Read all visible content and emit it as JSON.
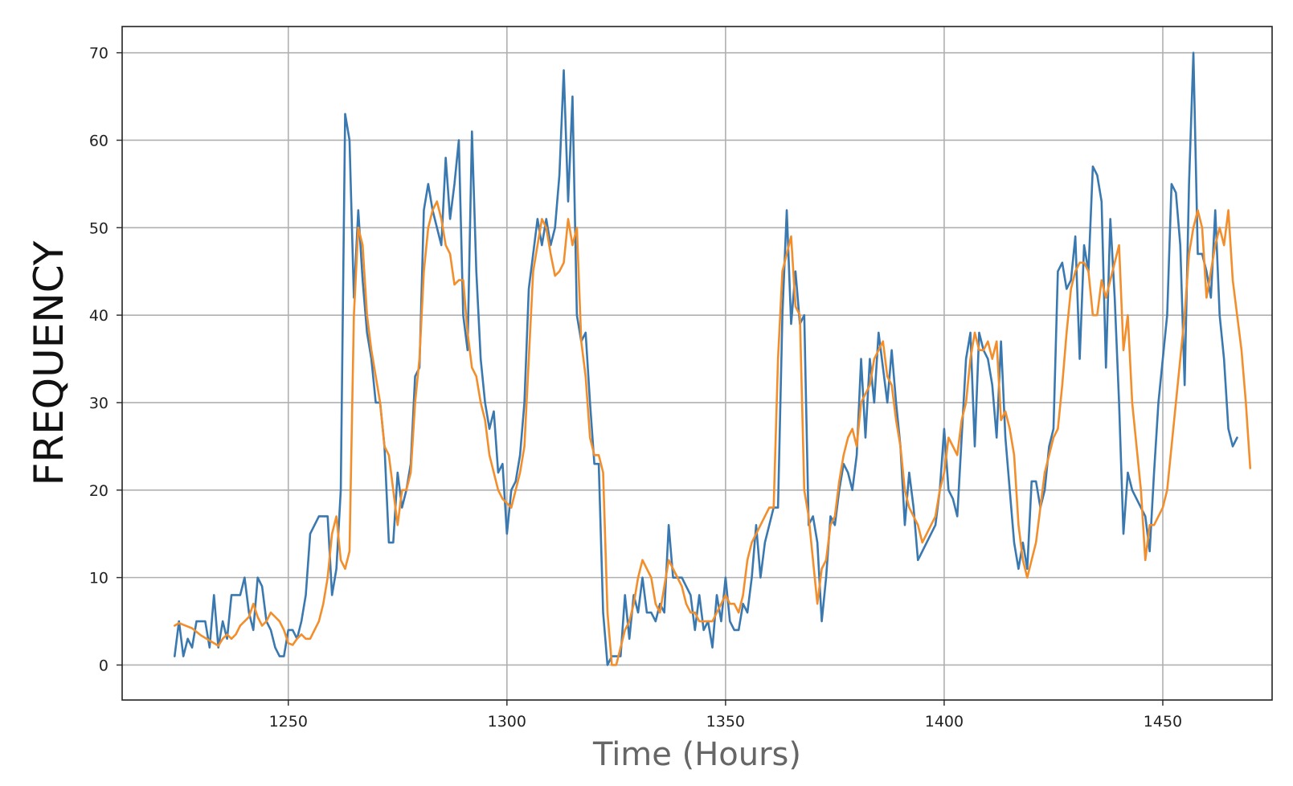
{
  "chart_data": {
    "type": "line",
    "title": "",
    "xlabel": "Time (Hours)",
    "ylabel": "FREQUENCY",
    "xlim": [
      1212,
      1475
    ],
    "ylim": [
      -4,
      73
    ],
    "x_ticks": [
      1250,
      1300,
      1350,
      1400,
      1450
    ],
    "y_ticks": [
      0,
      10,
      20,
      30,
      40,
      50,
      60,
      70
    ],
    "grid": true,
    "legend": "none",
    "series": [
      {
        "color": "#3a78b0",
        "x_start": 1224,
        "values": [
          1,
          5,
          1,
          3,
          2,
          5,
          5,
          5,
          2,
          8,
          2,
          5,
          3,
          8,
          8,
          8,
          10,
          6,
          4,
          10,
          9,
          5,
          4,
          2,
          1,
          1,
          4,
          4,
          3,
          5,
          8,
          15,
          16,
          17,
          17,
          17,
          8,
          11,
          20,
          63,
          60,
          42,
          52,
          44,
          38,
          35,
          30,
          30,
          25,
          14,
          14,
          22,
          18,
          20,
          23,
          33,
          34,
          52,
          55,
          52,
          50,
          48,
          58,
          51,
          55,
          60,
          40,
          36,
          61,
          45,
          35,
          30,
          27,
          29,
          22,
          23,
          15,
          20,
          21,
          24,
          30,
          43,
          47,
          51,
          48,
          51,
          48,
          50,
          56,
          68,
          53,
          65,
          40,
          37,
          38,
          30,
          23,
          23,
          6,
          0,
          1,
          1,
          1,
          8,
          3,
          8,
          6,
          10,
          6,
          6,
          5,
          7,
          6,
          16,
          10,
          10,
          10,
          9,
          8,
          4,
          8,
          4,
          5,
          2,
          8,
          5,
          10,
          5,
          4,
          4,
          7,
          6,
          10,
          16,
          10,
          14,
          16,
          18,
          18,
          40,
          52,
          39,
          45,
          39,
          40,
          16,
          17,
          14,
          5,
          10,
          17,
          16,
          20,
          23,
          22,
          20,
          24,
          35,
          26,
          35,
          30,
          38,
          34,
          30,
          36,
          30,
          25,
          16,
          22,
          18,
          12,
          13,
          14,
          15,
          16,
          20,
          27,
          20,
          19,
          17,
          26,
          35,
          38,
          25,
          38,
          36,
          35,
          32,
          26,
          37,
          26,
          20,
          14,
          11,
          14,
          11,
          21,
          21,
          18,
          20,
          25,
          27,
          45,
          46,
          43,
          44,
          49,
          35,
          48,
          45,
          57,
          56,
          53,
          34,
          51,
          42,
          30,
          15,
          22,
          20,
          19,
          18,
          17,
          13,
          22,
          30,
          35,
          40,
          55,
          54,
          48,
          32,
          55,
          70,
          47,
          47,
          45,
          42,
          52,
          40,
          35,
          27,
          25,
          26
        ],
        "values_note": ""
      },
      {
        "color": "#f28e2b",
        "x_start": 1224,
        "values": [
          4.5,
          4.8,
          4.6,
          4.4,
          4.2,
          3.8,
          3.4,
          3.1,
          2.8,
          2.5,
          2.2,
          3,
          3.5,
          3,
          3.5,
          4.5,
          5,
          5.5,
          7,
          5.5,
          4.5,
          5,
          6,
          5.5,
          5,
          4,
          2.5,
          2.3,
          3,
          3.5,
          3,
          3,
          4,
          5,
          7,
          10,
          15,
          17,
          12,
          11,
          13,
          40,
          50,
          48,
          40,
          36,
          33,
          30,
          25,
          24,
          20,
          16,
          20,
          20,
          22,
          30,
          35,
          45,
          50,
          52,
          53,
          51,
          48,
          47,
          43.5,
          44,
          44,
          38,
          34,
          33,
          30,
          28,
          24,
          22,
          20,
          19,
          18.5,
          18,
          20,
          22,
          25,
          35,
          45,
          48,
          51,
          50,
          47,
          44.5,
          45,
          46,
          51,
          48,
          50,
          37,
          33,
          26,
          24,
          24,
          22,
          6,
          0,
          0,
          2,
          4,
          5,
          7,
          10,
          12,
          11,
          10,
          7,
          6,
          9,
          12,
          11,
          10,
          9,
          7,
          6,
          6,
          5,
          5,
          5,
          5,
          6,
          7,
          8,
          7,
          7,
          6,
          8,
          12,
          14,
          15,
          16,
          17,
          18,
          18,
          35,
          45,
          47,
          49,
          41,
          40,
          20,
          17,
          12,
          7,
          11,
          12,
          16,
          17,
          21,
          24,
          26,
          27,
          25,
          30,
          31,
          32,
          35,
          36,
          37,
          33,
          32,
          28,
          25,
          20,
          18,
          17,
          16,
          14,
          15,
          16,
          17,
          20,
          22,
          26,
          25,
          24,
          28,
          30,
          35,
          38,
          36,
          36,
          37,
          35,
          37,
          28,
          29,
          27,
          24,
          16,
          12,
          10,
          12,
          14,
          18,
          22,
          24,
          26,
          27,
          32,
          38,
          43,
          45,
          46,
          46,
          45,
          40,
          40,
          44,
          42,
          44,
          46,
          48,
          36,
          40,
          30,
          25,
          20,
          12,
          16,
          16,
          17,
          18,
          20,
          25,
          30,
          35,
          40,
          47,
          50,
          52,
          50,
          42,
          45,
          48,
          50,
          48,
          52,
          44,
          40,
          36,
          30,
          22.5
        ],
        "values_note": ""
      }
    ]
  }
}
